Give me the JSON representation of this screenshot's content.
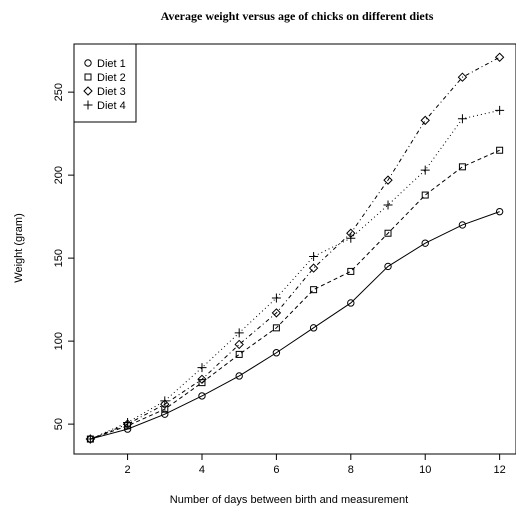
{
  "chart_data": {
    "type": "line",
    "title": "Average weight versus age of chicks on different diets",
    "xlabel": "Number of days between birth and measurement",
    "ylabel": "Weight (gram)",
    "xlim": [
      0.56,
      12.44
    ],
    "ylim": [
      32,
      279
    ],
    "xticks": [
      2,
      4,
      6,
      8,
      10,
      12
    ],
    "yticks": [
      50,
      100,
      150,
      200,
      250
    ],
    "grid": false,
    "legend_position": "top-left",
    "x": [
      1,
      2,
      3,
      4,
      5,
      6,
      7,
      8,
      9,
      10,
      11,
      12
    ],
    "series": [
      {
        "name": "Diet 1",
        "marker": "circle",
        "line": "solid",
        "values": [
          41,
          47,
          56,
          67,
          79,
          93,
          108,
          123,
          145,
          159,
          170,
          178
        ]
      },
      {
        "name": "Diet 2",
        "marker": "square",
        "line": "dashed",
        "values": [
          41,
          49,
          59,
          75,
          92,
          108,
          131,
          142,
          165,
          188,
          205,
          215
        ]
      },
      {
        "name": "Diet 3",
        "marker": "diamond",
        "line": "dotdash",
        "values": [
          41,
          50,
          62,
          77,
          98,
          117,
          144,
          165,
          197,
          233,
          259,
          271
        ]
      },
      {
        "name": "Diet 4",
        "marker": "plus",
        "line": "dotted",
        "values": [
          41,
          51,
          64,
          84,
          105,
          126,
          151,
          162,
          182,
          203,
          234,
          239
        ]
      }
    ]
  }
}
